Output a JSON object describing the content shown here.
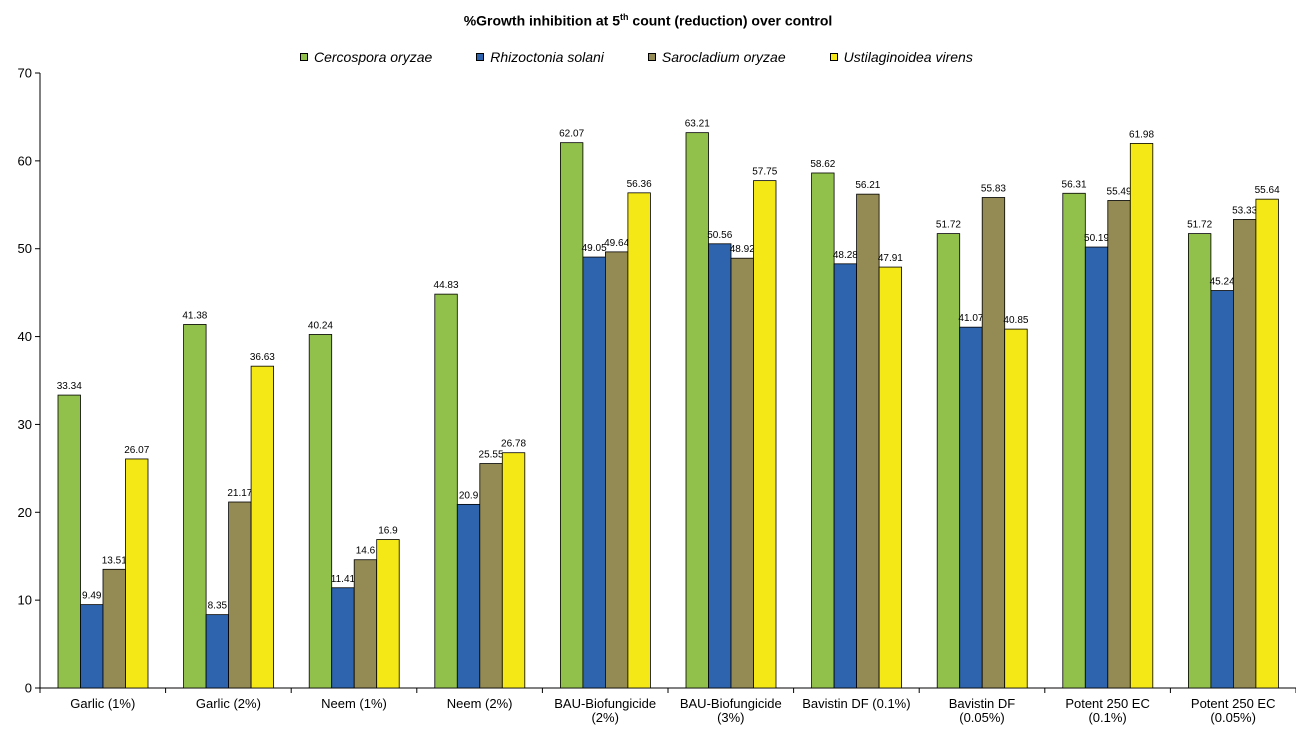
{
  "chart_data": {
    "type": "bar",
    "title_main": "%Growth inhibition at 5",
    "title_sup": "th",
    "title_rest": " count (reduction) over control",
    "xlabel": "",
    "ylabel": "",
    "ylim": [
      0,
      70
    ],
    "yticks": [
      0,
      10,
      20,
      30,
      40,
      50,
      60,
      70
    ],
    "grid": false,
    "legend_position": "top",
    "categories": [
      [
        "Garlic (1%)"
      ],
      [
        "Garlic (2%)"
      ],
      [
        "Neem (1%)"
      ],
      [
        "Neem (2%)"
      ],
      [
        "BAU-Biofungicide",
        "(2%)"
      ],
      [
        "BAU-Biofungicide",
        "(3%)"
      ],
      [
        "Bavistin DF (0.1%)"
      ],
      [
        "Bavistin DF",
        "(0.05%)"
      ],
      [
        "Potent 250 EC",
        "(0.1%)"
      ],
      [
        "Potent 250 EC",
        "(0.05%)"
      ]
    ],
    "series": [
      {
        "name": "Cercospora oryzae",
        "color": "#92c14b",
        "values": [
          33.34,
          41.38,
          40.24,
          44.83,
          62.07,
          63.21,
          58.62,
          51.72,
          56.31,
          51.72
        ],
        "labels": [
          "33.34",
          "41.38",
          "40.24",
          "44.83",
          "62.07",
          "63.21",
          "58.62",
          "51.72",
          "56.31",
          "51.72"
        ]
      },
      {
        "name": "Rhizoctonia solani",
        "color": "#2e64ae",
        "values": [
          9.49,
          8.35,
          11.41,
          20.9,
          49.05,
          50.56,
          48.28,
          41.07,
          50.19,
          45.24
        ],
        "labels": [
          "9.49",
          "8.35",
          "11.41",
          "20.9",
          "49.05",
          "50.56",
          "48.28",
          "41.07",
          "50.19",
          "45.24"
        ]
      },
      {
        "name": "Sarocladium oryzae",
        "color": "#948a54",
        "values": [
          13.51,
          21.17,
          14.6,
          25.55,
          49.64,
          48.92,
          56.21,
          55.83,
          55.49,
          53.33
        ],
        "labels": [
          "13.51",
          "21.17",
          "14.6",
          "25.55",
          "49.64",
          "48.92",
          "56.21",
          "55.83",
          "55.49",
          "53.33"
        ]
      },
      {
        "name": "Ustilaginoidea virens",
        "color": "#f5e817",
        "values": [
          26.07,
          36.63,
          16.9,
          26.78,
          56.36,
          57.75,
          47.91,
          40.85,
          61.98,
          55.64
        ],
        "labels": [
          "26.07",
          "36.63",
          "16.9",
          "26.78",
          "56.36",
          "57.75",
          "47.91",
          "40.85",
          "61.98",
          "55.64"
        ]
      }
    ]
  }
}
